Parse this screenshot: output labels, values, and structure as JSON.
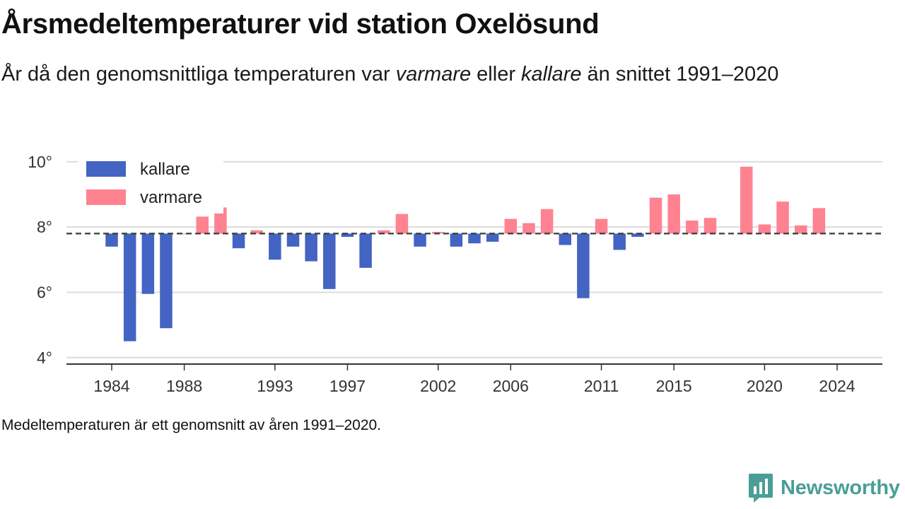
{
  "title": "Årsmedeltemperaturer vid station Oxelösund",
  "subtitle": {
    "prefix": "År då den genomsnittliga temperaturen var ",
    "warm_word": "varmare",
    "middle": " eller ",
    "cold_word": "kallare",
    "suffix": " än snittet 1991–2020"
  },
  "footnote": "Medeltemperaturen är ett genomsnitt av åren 1991–2020.",
  "brand": {
    "name": "Newsworthy",
    "icon": "newsworthy-logo-icon",
    "color": "#4a9e96"
  },
  "chart_data": {
    "type": "bar",
    "baseline": 7.8,
    "ylim": [
      3.8,
      10.3
    ],
    "yticks": [
      4,
      6,
      8,
      10
    ],
    "ytick_suffix": "°",
    "xticks": [
      1984,
      1988,
      1993,
      1997,
      2002,
      2006,
      2011,
      2015,
      2020,
      2024
    ],
    "grid": true,
    "legend": "top-left",
    "colors": {
      "kallare": "#4364c2",
      "varmare": "#ff8290"
    },
    "series": [
      {
        "name": "kallare",
        "color": "#4364c2"
      },
      {
        "name": "varmare",
        "color": "#ff8290"
      }
    ],
    "x": [
      1984,
      1985,
      1986,
      1987,
      1988,
      1989,
      1990,
      1991,
      1992,
      1993,
      1994,
      1995,
      1996,
      1997,
      1998,
      1999,
      2000,
      2001,
      2002,
      2003,
      2004,
      2005,
      2006,
      2007,
      2008,
      2009,
      2010,
      2011,
      2012,
      2013,
      2014,
      2015,
      2016,
      2017,
      2018,
      2019,
      2020,
      2021,
      2022,
      2023,
      2024
    ],
    "values": [
      7.4,
      4.5,
      5.95,
      4.9,
      7.8,
      8.32,
      8.6,
      7.35,
      7.9,
      7.0,
      7.4,
      6.95,
      6.1,
      7.7,
      6.75,
      7.9,
      8.4,
      7.4,
      7.85,
      7.4,
      7.5,
      7.55,
      8.25,
      8.12,
      8.55,
      7.45,
      5.82,
      8.25,
      7.3,
      7.7,
      8.9,
      9.0,
      8.2,
      8.28,
      null,
      9.85,
      8.08,
      8.78,
      8.05,
      8.58,
      null
    ]
  }
}
